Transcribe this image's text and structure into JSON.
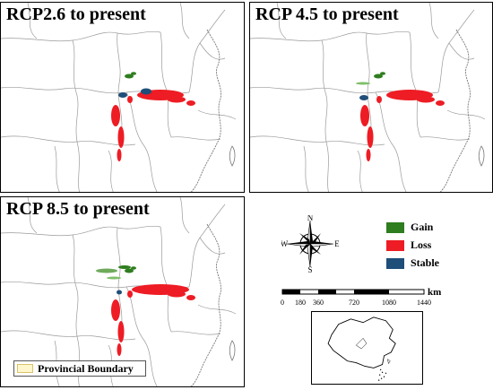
{
  "panels": [
    {
      "title": "RCP2.6  to present"
    },
    {
      "title": "RCP 4.5 to present"
    },
    {
      "title": "RCP 8.5 to present"
    }
  ],
  "legend": {
    "items": [
      {
        "label": "Gain",
        "color": "#2e7d1e"
      },
      {
        "label": "Loss",
        "color": "#ee1c24"
      },
      {
        "label": "Stable",
        "color": "#1f4e79"
      }
    ],
    "boundary_label": "Provincial Boundary",
    "boundary_color": "#fff6cc"
  },
  "compass": {
    "n": "N",
    "s": "S",
    "e": "E",
    "w": "W"
  },
  "scale": {
    "unit": "km",
    "ticks": [
      "0",
      "180",
      "360",
      "720",
      "1080",
      "1440"
    ]
  }
}
